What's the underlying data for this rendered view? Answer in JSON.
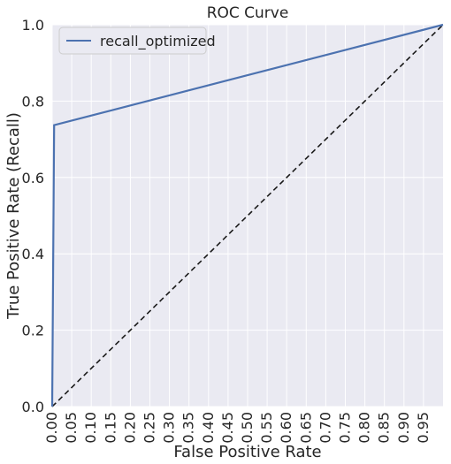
{
  "chart_data": {
    "type": "line",
    "title": "ROC Curve",
    "xlabel": "False Positive Rate",
    "ylabel": "True Positive Rate (Recall)",
    "xlim": [
      0,
      1
    ],
    "ylim": [
      0,
      1
    ],
    "x_ticks": [
      "0.00",
      "0.05",
      "0.10",
      "0.15",
      "0.20",
      "0.25",
      "0.30",
      "0.35",
      "0.40",
      "0.45",
      "0.50",
      "0.55",
      "0.60",
      "0.65",
      "0.70",
      "0.75",
      "0.80",
      "0.85",
      "0.90",
      "0.95"
    ],
    "y_ticks": [
      "0.0",
      "0.2",
      "0.4",
      "0.6",
      "0.8",
      "1.0"
    ],
    "grid": true,
    "legend_position": "top-left",
    "series": [
      {
        "name": "recall_optimized",
        "color": "#4c72b0",
        "style": "solid",
        "x": [
          0.0,
          0.005,
          1.0
        ],
        "y": [
          0.0,
          0.737,
          1.0
        ]
      },
      {
        "color": "#1a1a1a",
        "style": "dashed",
        "x": [
          0.0,
          1.0
        ],
        "y": [
          0.0,
          1.0
        ]
      }
    ],
    "background_color": "#eaeaf2",
    "grid_color": "#ffffff"
  }
}
